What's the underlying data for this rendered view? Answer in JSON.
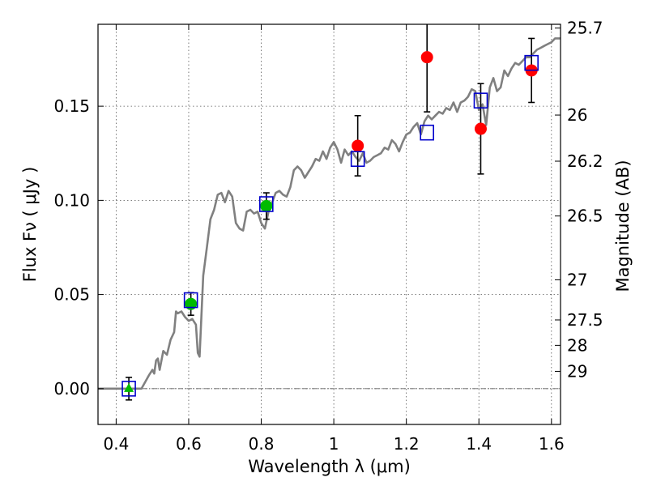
{
  "chart_data": {
    "type": "scatter",
    "xlabel": "Wavelength  λ (μm)",
    "ylabel": "Flux  Fν  ( μJy )",
    "ylabel_right": "Magnitude (AB)",
    "xlim": [
      0.35,
      1.625
    ],
    "ylim": [
      -0.019,
      0.1935
    ],
    "grid": true,
    "x_ticks": [
      {
        "value": 0.4,
        "label": "0.4"
      },
      {
        "value": 0.6,
        "label": "0.6"
      },
      {
        "value": 0.8,
        "label": "0.8"
      },
      {
        "value": 1.0,
        "label": "1"
      },
      {
        "value": 1.2,
        "label": "1.2"
      },
      {
        "value": 1.4,
        "label": "1.4"
      },
      {
        "value": 1.6,
        "label": "1.6"
      }
    ],
    "y_ticks": [
      {
        "value": 0.0,
        "label": "0.00"
      },
      {
        "value": 0.05,
        "label": "0.05"
      },
      {
        "value": 0.1,
        "label": "0.10"
      },
      {
        "value": 0.15,
        "label": "0.15"
      }
    ],
    "mag_ticks": [
      {
        "label": "25.7",
        "flux": 0.1915
      },
      {
        "label": "26",
        "flux": 0.1453
      },
      {
        "label": "26.2",
        "flux": 0.1208
      },
      {
        "label": "26.5",
        "flux": 0.0917
      },
      {
        "label": "27",
        "flux": 0.0578
      },
      {
        "label": "27.5",
        "flux": 0.0365
      },
      {
        "label": "28",
        "flux": 0.023
      },
      {
        "label": "29",
        "flux": 0.0092
      }
    ],
    "model_sed": {
      "color": "#808080",
      "points": [
        [
          0.35,
          0.0
        ],
        [
          0.44,
          0.0
        ],
        [
          0.47,
          0.0
        ],
        [
          0.49,
          0.007
        ],
        [
          0.5,
          0.01
        ],
        [
          0.505,
          0.008
        ],
        [
          0.51,
          0.015
        ],
        [
          0.515,
          0.016
        ],
        [
          0.52,
          0.01
        ],
        [
          0.53,
          0.02
        ],
        [
          0.54,
          0.018
        ],
        [
          0.55,
          0.026
        ],
        [
          0.56,
          0.03
        ],
        [
          0.565,
          0.041
        ],
        [
          0.57,
          0.04
        ],
        [
          0.58,
          0.041
        ],
        [
          0.59,
          0.038
        ],
        [
          0.6,
          0.036
        ],
        [
          0.61,
          0.037
        ],
        [
          0.62,
          0.034
        ],
        [
          0.625,
          0.019
        ],
        [
          0.63,
          0.017
        ],
        [
          0.64,
          0.06
        ],
        [
          0.65,
          0.075
        ],
        [
          0.66,
          0.09
        ],
        [
          0.67,
          0.095
        ],
        [
          0.68,
          0.103
        ],
        [
          0.69,
          0.104
        ],
        [
          0.7,
          0.099
        ],
        [
          0.71,
          0.105
        ],
        [
          0.72,
          0.102
        ],
        [
          0.73,
          0.088
        ],
        [
          0.74,
          0.085
        ],
        [
          0.75,
          0.084
        ],
        [
          0.76,
          0.094
        ],
        [
          0.77,
          0.095
        ],
        [
          0.78,
          0.093
        ],
        [
          0.79,
          0.094
        ],
        [
          0.8,
          0.088
        ],
        [
          0.81,
          0.085
        ],
        [
          0.82,
          0.094
        ],
        [
          0.83,
          0.099
        ],
        [
          0.84,
          0.104
        ],
        [
          0.85,
          0.105
        ],
        [
          0.86,
          0.103
        ],
        [
          0.87,
          0.102
        ],
        [
          0.88,
          0.107
        ],
        [
          0.89,
          0.116
        ],
        [
          0.9,
          0.118
        ],
        [
          0.91,
          0.116
        ],
        [
          0.92,
          0.112
        ],
        [
          0.93,
          0.115
        ],
        [
          0.94,
          0.118
        ],
        [
          0.95,
          0.122
        ],
        [
          0.96,
          0.121
        ],
        [
          0.97,
          0.126
        ],
        [
          0.98,
          0.122
        ],
        [
          0.99,
          0.128
        ],
        [
          1.0,
          0.131
        ],
        [
          1.01,
          0.127
        ],
        [
          1.02,
          0.12
        ],
        [
          1.03,
          0.127
        ],
        [
          1.04,
          0.124
        ],
        [
          1.05,
          0.126
        ],
        [
          1.06,
          0.123
        ],
        [
          1.07,
          0.121
        ],
        [
          1.08,
          0.125
        ],
        [
          1.09,
          0.12
        ],
        [
          1.1,
          0.121
        ],
        [
          1.11,
          0.123
        ],
        [
          1.12,
          0.124
        ],
        [
          1.13,
          0.125
        ],
        [
          1.14,
          0.128
        ],
        [
          1.15,
          0.127
        ],
        [
          1.16,
          0.132
        ],
        [
          1.17,
          0.13
        ],
        [
          1.18,
          0.126
        ],
        [
          1.19,
          0.131
        ],
        [
          1.2,
          0.135
        ],
        [
          1.21,
          0.136
        ],
        [
          1.22,
          0.139
        ],
        [
          1.23,
          0.141
        ],
        [
          1.24,
          0.135
        ],
        [
          1.25,
          0.142
        ],
        [
          1.26,
          0.145
        ],
        [
          1.27,
          0.143
        ],
        [
          1.28,
          0.145
        ],
        [
          1.29,
          0.147
        ],
        [
          1.3,
          0.146
        ],
        [
          1.31,
          0.149
        ],
        [
          1.32,
          0.148
        ],
        [
          1.33,
          0.152
        ],
        [
          1.34,
          0.147
        ],
        [
          1.35,
          0.152
        ],
        [
          1.36,
          0.153
        ],
        [
          1.37,
          0.155
        ],
        [
          1.38,
          0.159
        ],
        [
          1.39,
          0.158
        ],
        [
          1.4,
          0.148
        ],
        [
          1.41,
          0.151
        ],
        [
          1.42,
          0.14
        ],
        [
          1.43,
          0.16
        ],
        [
          1.44,
          0.165
        ],
        [
          1.45,
          0.158
        ],
        [
          1.46,
          0.16
        ],
        [
          1.47,
          0.169
        ],
        [
          1.48,
          0.166
        ],
        [
          1.49,
          0.17
        ],
        [
          1.5,
          0.173
        ],
        [
          1.51,
          0.172
        ],
        [
          1.52,
          0.174
        ],
        [
          1.53,
          0.176
        ],
        [
          1.54,
          0.176
        ],
        [
          1.55,
          0.178
        ],
        [
          1.56,
          0.18
        ],
        [
          1.57,
          0.181
        ],
        [
          1.58,
          0.182
        ],
        [
          1.59,
          0.183
        ],
        [
          1.6,
          0.184
        ],
        [
          1.61,
          0.186
        ],
        [
          1.625,
          0.186
        ]
      ]
    },
    "series": [
      {
        "marker": "square",
        "color": "#0000cc",
        "points": [
          {
            "x": 0.435,
            "y": 0.0
          },
          {
            "x": 0.606,
            "y": 0.047
          },
          {
            "x": 0.814,
            "y": 0.098
          },
          {
            "x": 1.066,
            "y": 0.122
          },
          {
            "x": 1.257,
            "y": 0.136
          },
          {
            "x": 1.405,
            "y": 0.153
          },
          {
            "x": 1.545,
            "y": 0.173
          }
        ]
      },
      {
        "marker": "circle",
        "color": "#00bb00",
        "points": [
          {
            "x": 0.606,
            "y": 0.045,
            "yerr": 0.006
          },
          {
            "x": 0.814,
            "y": 0.097,
            "yerr": 0.007
          }
        ]
      },
      {
        "marker": "triangle",
        "color": "#00bb00",
        "points": [
          {
            "x": 0.435,
            "y": 0.0,
            "yerr": 0.006
          }
        ]
      },
      {
        "marker": "circle",
        "color": "#ff0000",
        "points": [
          {
            "x": 1.066,
            "y": 0.129,
            "yerr": 0.016
          },
          {
            "x": 1.257,
            "y": 0.176,
            "yerr": 0.029
          },
          {
            "x": 1.405,
            "y": 0.138,
            "yerr": 0.024
          },
          {
            "x": 1.545,
            "y": 0.169,
            "yerr": 0.017
          }
        ]
      }
    ]
  }
}
